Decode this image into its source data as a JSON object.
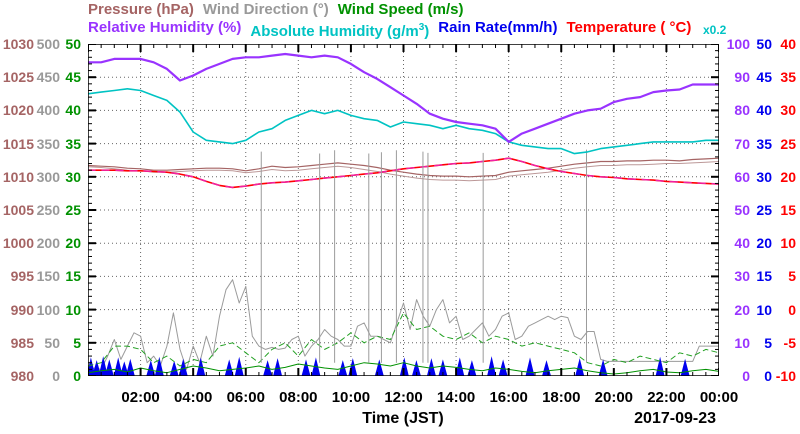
{
  "legend": {
    "row1": [
      {
        "id": "pressure",
        "text": "Pressure (hPa)",
        "color": "#a56464"
      },
      {
        "id": "wind-direction",
        "text": "Wind Direction (°)",
        "color": "#999999"
      },
      {
        "id": "wind-speed",
        "text": "Wind Speed (m/s)",
        "color": "#009100"
      }
    ],
    "row2": [
      {
        "id": "relative-humidity",
        "text": "Relative Humidity (%)",
        "color": "#9933ff"
      },
      {
        "id": "absolute-humidity",
        "text": "Absolute Humidity (g/m",
        "sup": "3",
        "post": ")",
        "color": "#00c3c3"
      },
      {
        "id": "rain-rate",
        "text": "Rain Rate(mm/h)",
        "color": "#0000ee"
      },
      {
        "id": "temperature",
        "text": "Temperature ( °C)",
        "color": "#ff0000"
      }
    ],
    "multiplier": {
      "text": "x0.2",
      "color": "#00c3c3"
    }
  },
  "y_tick_labels": {
    "pressure": [
      "1030",
      "1025",
      "1020",
      "1015",
      "1010",
      "1005",
      "1000",
      "995",
      "990",
      "985",
      "980"
    ],
    "wind_direction": [
      "500",
      "450",
      "400",
      "350",
      "300",
      "250",
      "200",
      "150",
      "100",
      "50",
      "0"
    ],
    "wind_speed": [
      "50",
      "45",
      "40",
      "35",
      "30",
      "25",
      "20",
      "15",
      "10",
      "5",
      "0"
    ],
    "relative_humidity": [
      "100",
      "90",
      "80",
      "70",
      "60",
      "50",
      "40",
      "30",
      "20",
      "10",
      "0"
    ],
    "rain_rate": [
      "50",
      "45",
      "40",
      "35",
      "30",
      "25",
      "20",
      "15",
      "10",
      "5",
      "0"
    ],
    "temperature": [
      "40",
      "35",
      "30",
      "25",
      "20",
      "15",
      "10",
      "5",
      "0",
      "-5",
      "-10"
    ]
  },
  "x_axis": {
    "tick_labels": [
      "02:00",
      "04:00",
      "06:00",
      "08:00",
      "10:00",
      "12:00",
      "14:00",
      "16:00",
      "18:00",
      "20:00",
      "22:00",
      "00:00"
    ],
    "title": "Time (JST)",
    "date": "2017-09-23"
  },
  "chart_data": {
    "type": "line",
    "x_unit": "hours (JST)",
    "x_range": [
      0,
      24
    ],
    "grid": true,
    "y_axes": [
      {
        "label": "Pressure (hPa)",
        "color": "#a56464",
        "min": 980,
        "max": 1030,
        "side": "left"
      },
      {
        "label": "Wind Direction (°)",
        "color": "#999999",
        "min": 0,
        "max": 500,
        "side": "left"
      },
      {
        "label": "Wind Speed (m/s)",
        "color": "#009100",
        "min": 0,
        "max": 50,
        "side": "left"
      },
      {
        "label": "Relative Humidity (%)",
        "color": "#9933ff",
        "min": 0,
        "max": 100,
        "side": "right"
      },
      {
        "label": "Rain Rate(mm/h)",
        "color": "#0000ee",
        "min": 0,
        "max": 50,
        "side": "right"
      },
      {
        "label": "Temperature ( °C)",
        "color": "#ff0000",
        "min": -10,
        "max": 40,
        "side": "right"
      },
      {
        "label": "Absolute Humidity (g/m3)",
        "color": "#00c3c3",
        "min": 0,
        "max": 20,
        "side": "right",
        "note": "humidity axis x0.2"
      }
    ],
    "abs_humidity_axis_multiplier": 0.2,
    "series": [
      {
        "name": "wind_direction",
        "legend": "Wind Direction (°)",
        "unit": "deg",
        "color": "#9b9b9b",
        "style": "solid",
        "stroke_width": 1,
        "scale": {
          "mul": 0.2,
          "add": 0
        },
        "x_start": 0,
        "x_step": 0.25,
        "values": [
          8,
          12,
          10,
          30,
          55,
          25,
          45,
          65,
          60,
          20,
          30,
          15,
          45,
          95,
          40,
          10,
          45,
          20,
          60,
          30,
          90,
          130,
          145,
          110,
          135,
          60,
          45,
          40,
          43,
          40,
          42,
          55,
          60,
          30,
          45,
          55,
          70,
          60,
          55,
          45,
          45,
          75,
          80,
          60,
          60,
          55,
          50,
          80,
          110,
          70,
          115,
          90,
          75,
          100,
          115,
          80,
          90,
          55,
          60,
          70,
          80,
          60,
          70,
          90,
          95,
          55,
          60,
          75,
          80,
          85,
          90,
          85,
          90,
          88,
          60,
          55,
          67,
          67,
          25,
          22,
          22,
          22,
          22,
          22,
          22,
          22,
          22,
          22,
          22,
          22,
          22,
          22,
          22,
          45,
          45,
          45,
          45
        ]
      },
      {
        "name": "wind_speed_gust",
        "legend": "Wind Speed (m/s)",
        "unit": "m/s",
        "color": "#22a022",
        "style": "dashed",
        "stroke_width": 1,
        "scale": {
          "mul": 2,
          "add": 0
        },
        "x_start": 0,
        "x_step": 0.5,
        "values": [
          1.5,
          2.0,
          4.5,
          4.5,
          4.0,
          2.0,
          3.0,
          1.5,
          2.5,
          2.0,
          4.5,
          5.0,
          3.5,
          2.0,
          4.0,
          5.0,
          3.0,
          5.5,
          4.0,
          5.0,
          6.5,
          5.0,
          6.0,
          5.5,
          9.5,
          7.0,
          7.5,
          6.0,
          5.5,
          6.5,
          5.0,
          6.0,
          5.5,
          4.5,
          5.0,
          4.5,
          4.0,
          3.5,
          2.0,
          1.5,
          2.5,
          2.0,
          3.0,
          2.5,
          2.0,
          3.5,
          3.0,
          4.0,
          3.5
        ]
      },
      {
        "name": "wind_speed_avg",
        "legend": "Wind Speed (m/s)",
        "unit": "m/s",
        "color": "#009100",
        "style": "solid",
        "stroke_width": 1,
        "scale": {
          "mul": 2,
          "add": 0
        },
        "x_start": 0,
        "x_step": 0.5,
        "values": [
          0.5,
          0.8,
          1.0,
          0.6,
          1.2,
          0.8,
          0.5,
          1.0,
          1.5,
          1.2,
          0.8,
          1.0,
          1.2,
          1.5,
          1.0,
          1.3,
          1.8,
          1.5,
          1.2,
          1.0,
          1.5,
          2.0,
          1.8,
          1.5,
          2.0,
          1.5,
          1.2,
          1.5,
          1.3,
          1.0,
          0.8,
          1.2,
          1.0,
          0.7,
          0.5,
          0.8,
          1.0,
          1.2,
          0.8,
          0.5,
          0.3,
          0.5,
          0.8,
          1.0,
          0.6,
          0.5,
          0.8,
          1.0,
          0.7
        ]
      },
      {
        "name": "pressure_secondary",
        "legend": "Pressure (hPa)",
        "unit": "hPa",
        "color": "#bc9898",
        "style": "solid",
        "stroke_width": 1,
        "scale": {
          "mul": 2,
          "add": -1960
        },
        "x_start": 0,
        "x_step": 0.5,
        "values": [
          1011.5,
          1011.4,
          1011.2,
          1011.0,
          1010.9,
          1010.7,
          1010.7,
          1010.8,
          1010.9,
          1011.0,
          1011.0,
          1010.9,
          1010.6,
          1010.8,
          1011.1,
          1010.9,
          1011.0,
          1011.2,
          1011.4,
          1011.6,
          1011.4,
          1011.1,
          1010.8,
          1010.4,
          1010.1,
          1009.8,
          1009.6,
          1009.5,
          1009.5,
          1009.4,
          1009.5,
          1009.6,
          1010.1,
          1010.3,
          1010.5,
          1010.7,
          1011.0,
          1011.3,
          1011.5,
          1011.7,
          1011.7,
          1011.8,
          1011.8,
          1011.9,
          1012.0,
          1012.0,
          1012.1,
          1012.2,
          1012.3
        ]
      },
      {
        "name": "pressure",
        "legend": "Pressure (hPa)",
        "unit": "hPa",
        "color": "#a56464",
        "style": "solid",
        "stroke_width": 1.2,
        "scale": {
          "mul": 2,
          "add": -1960
        },
        "x_start": 0,
        "x_step": 0.5,
        "values": [
          1011.7,
          1011.6,
          1011.5,
          1011.3,
          1011.2,
          1011.0,
          1011.0,
          1011.1,
          1011.2,
          1011.3,
          1011.3,
          1011.2,
          1010.9,
          1011.2,
          1011.6,
          1011.4,
          1011.5,
          1011.7,
          1011.9,
          1012.1,
          1011.9,
          1011.7,
          1011.4,
          1011.0,
          1010.7,
          1010.4,
          1010.2,
          1010.1,
          1010.1,
          1010.0,
          1010.1,
          1010.2,
          1010.7,
          1010.9,
          1011.1,
          1011.3,
          1011.6,
          1011.9,
          1012.1,
          1012.3,
          1012.3,
          1012.4,
          1012.4,
          1012.5,
          1012.5,
          1012.4,
          1012.6,
          1012.7,
          1012.8
        ]
      },
      {
        "name": "temperature",
        "legend": "Temperature ( °C)",
        "unit": "°C",
        "color": "#ff0000",
        "style": "solid",
        "stroke_width": 1.6,
        "scale": {
          "mul": 2,
          "add": 20
        },
        "x_start": 0,
        "x_step": 0.5,
        "values": [
          21.0,
          21.0,
          21.0,
          20.9,
          20.9,
          20.8,
          20.7,
          20.4,
          20.0,
          19.3,
          18.7,
          18.4,
          18.6,
          18.9,
          19.1,
          19.2,
          19.4,
          19.6,
          19.8,
          20.0,
          20.2,
          20.4,
          20.6,
          20.9,
          21.2,
          21.4,
          21.6,
          21.8,
          22.0,
          22.1,
          22.3,
          22.5,
          22.8,
          22.3,
          21.7,
          21.2,
          20.8,
          20.5,
          20.2,
          20.0,
          19.9,
          19.7,
          19.6,
          19.5,
          19.3,
          19.2,
          19.1,
          19.0,
          18.9
        ]
      },
      {
        "name": "temperature_overlay",
        "legend": "Temperature ( °C)",
        "unit": "°C",
        "color": "#ee22aa",
        "style": "dashed",
        "stroke_width": 1.4,
        "scale": {
          "mul": 2,
          "add": 20
        },
        "x_start": 0,
        "x_step": 0.5,
        "values": [
          21.0,
          21.0,
          21.0,
          20.9,
          20.9,
          20.8,
          20.7,
          20.4,
          20.0,
          19.3,
          18.7,
          18.4,
          18.6,
          18.9,
          19.1,
          19.2,
          19.4,
          19.6,
          19.8,
          20.0,
          20.2,
          20.4,
          20.6,
          20.9,
          21.2,
          21.4,
          21.6,
          21.8,
          22.0,
          22.1,
          22.3,
          22.5,
          22.8,
          22.3,
          21.7,
          21.2,
          20.8,
          20.5,
          20.2,
          20.0,
          19.9,
          19.7,
          19.6,
          19.5,
          19.3,
          19.2,
          19.1,
          19.0,
          18.9
        ]
      },
      {
        "name": "absolute_humidity",
        "legend": "Absolute Humidity (g/m3)",
        "unit": "g/m3",
        "color": "#00c3c3",
        "style": "solid",
        "stroke_width": 1.6,
        "scale": {
          "mul": 5,
          "add": 0
        },
        "x_start": 0,
        "x_step": 0.5,
        "values": [
          17.0,
          17.1,
          17.2,
          17.3,
          17.2,
          16.9,
          16.6,
          15.9,
          14.7,
          14.2,
          14.1,
          14.0,
          14.2,
          14.7,
          14.9,
          15.4,
          15.7,
          16.0,
          15.8,
          16.0,
          15.7,
          15.5,
          15.4,
          15.0,
          15.3,
          15.2,
          15.1,
          14.9,
          15.1,
          14.9,
          14.8,
          14.6,
          14.1,
          13.9,
          13.8,
          13.7,
          13.7,
          13.4,
          13.5,
          13.7,
          13.8,
          13.9,
          14.0,
          14.1,
          14.1,
          14.1,
          14.1,
          14.2,
          14.2
        ]
      },
      {
        "name": "relative_humidity",
        "legend": "Relative Humidity (%)",
        "unit": "%",
        "color": "#9933ff",
        "style": "solid",
        "stroke_width": 2.2,
        "scale": {
          "mul": 1,
          "add": 0
        },
        "x_start": 0,
        "x_step": 0.5,
        "values": [
          94.5,
          94.5,
          95.5,
          95.5,
          95.5,
          94.5,
          92.5,
          89.0,
          90.5,
          92.5,
          94.0,
          95.5,
          96.0,
          96.0,
          96.5,
          97.0,
          96.5,
          96.0,
          96.5,
          96.0,
          94.0,
          91.5,
          89.5,
          87.0,
          84.5,
          82.0,
          79.0,
          77.5,
          76.5,
          76.0,
          75.5,
          74.5,
          70.5,
          73.0,
          74.5,
          76.0,
          77.5,
          79.0,
          80.0,
          80.5,
          82.5,
          83.5,
          84.0,
          85.5,
          86.0,
          86.3,
          87.8,
          87.8,
          87.8
        ]
      }
    ],
    "wind_direction_spikes": {
      "unit": "deg",
      "points": [
        [
          6.59,
          338
        ],
        [
          8.81,
          335
        ],
        [
          9.38,
          340
        ],
        [
          10.68,
          335
        ],
        [
          11.16,
          337
        ],
        [
          11.73,
          340
        ],
        [
          12.74,
          338
        ],
        [
          12.93,
          336
        ],
        [
          15.03,
          336
        ],
        [
          18.96,
          341
        ]
      ]
    },
    "rain_spikes": {
      "unit": "mm/h",
      "color": "#0000ee",
      "points": [
        [
          0.11,
          2.8
        ],
        [
          0.33,
          2.4
        ],
        [
          0.58,
          3.0
        ],
        [
          0.81,
          2.5
        ],
        [
          1.15,
          2.8
        ],
        [
          1.38,
          2.2
        ],
        [
          1.61,
          2.6
        ],
        [
          2.39,
          2.4
        ],
        [
          2.71,
          2.9
        ],
        [
          3.28,
          2.3
        ],
        [
          3.62,
          2.6
        ],
        [
          4.29,
          2.8
        ],
        [
          5.37,
          2.5
        ],
        [
          5.75,
          2.9
        ],
        [
          6.83,
          2.4
        ],
        [
          7.21,
          2.7
        ],
        [
          8.29,
          2.5
        ],
        [
          8.67,
          2.8
        ],
        [
          9.69,
          2.4
        ],
        [
          10.07,
          2.7
        ],
        [
          11.08,
          2.5
        ],
        [
          12.03,
          2.8
        ],
        [
          12.49,
          2.4
        ],
        [
          13.06,
          2.7
        ],
        [
          13.5,
          2.5
        ],
        [
          14.14,
          2.8
        ],
        [
          14.6,
          2.4
        ],
        [
          15.35,
          3.0
        ],
        [
          15.79,
          2.5
        ],
        [
          16.81,
          2.8
        ],
        [
          17.44,
          2.4
        ],
        [
          18.7,
          2.7
        ],
        [
          19.59,
          2.5
        ],
        [
          21.76,
          2.9
        ],
        [
          22.71,
          2.6
        ]
      ]
    }
  }
}
